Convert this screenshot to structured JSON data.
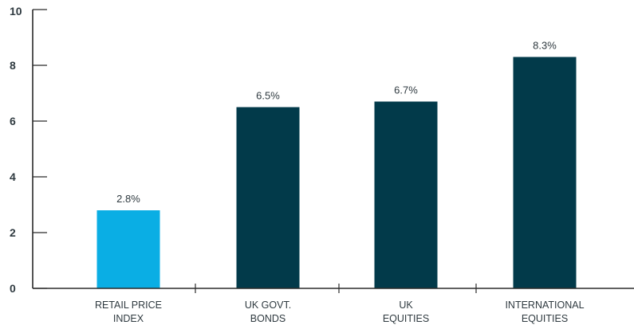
{
  "chart_data": {
    "type": "bar",
    "title": "",
    "xlabel": "",
    "ylabel": "",
    "categories": [
      [
        "RETAIL PRICE",
        "INDEX"
      ],
      [
        "UK GOVT.",
        "BONDS"
      ],
      [
        "UK",
        "EQUITIES"
      ],
      [
        "INTERNATIONAL",
        "EQUITIES"
      ]
    ],
    "values": [
      2.8,
      6.5,
      6.7,
      8.3
    ],
    "data_labels": [
      "2.8%",
      "6.5%",
      "6.7%",
      "8.3%"
    ],
    "bar_colors": [
      "#0aaee4",
      "#023a4a",
      "#023a4a",
      "#023a4a"
    ],
    "ylim": [
      0,
      10
    ],
    "yticks": [
      0,
      2,
      4,
      6,
      8,
      10
    ],
    "grid": false,
    "legend": "none"
  }
}
